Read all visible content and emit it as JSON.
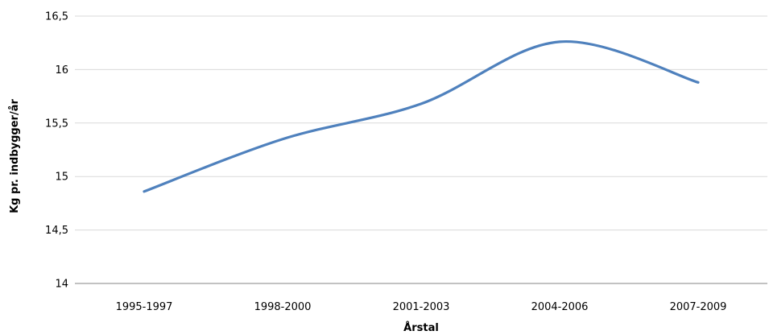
{
  "chart_data": {
    "type": "line",
    "smooth": true,
    "categories": [
      "1995-1997",
      "1998-2000",
      "2001-2003",
      "2004-2006",
      "2007-2009"
    ],
    "series": [
      {
        "values": [
          14.86,
          15.35,
          15.68,
          16.26,
          15.88
        ]
      }
    ],
    "xlabel": "Årstal",
    "ylabel": "Kg pr. indbygger/år",
    "ylim": [
      14,
      16.5
    ],
    "yticks": [
      14,
      14.5,
      15,
      15.5,
      16,
      16.5
    ],
    "ytick_labels": [
      "14",
      "14,5",
      "15",
      "15,5",
      "16",
      "16,5"
    ],
    "grid": true,
    "legend": "none",
    "colors": {
      "series": "#4f81bd",
      "grid": "#d9d9d9",
      "axis": "#868686"
    }
  }
}
